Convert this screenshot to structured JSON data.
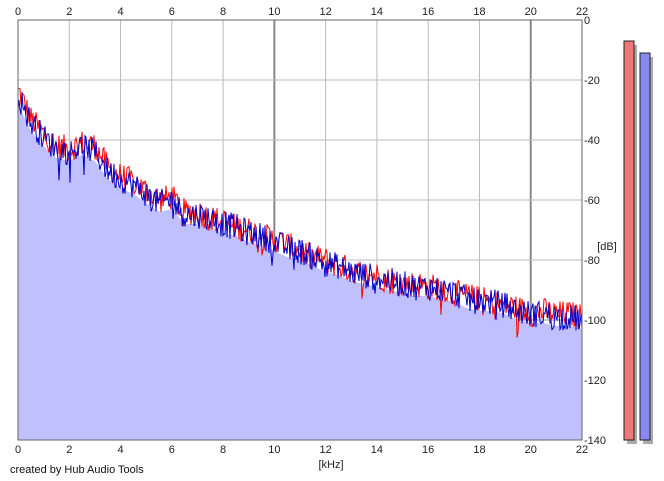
{
  "footer": {
    "credit": "created by Hub Audio Tools"
  },
  "chart_data": {
    "type": "line",
    "xlabel": "[kHz]",
    "ylabel": "[dB]",
    "xlim": [
      0,
      22
    ],
    "ylim": [
      -140,
      0
    ],
    "x_ticks": [
      0,
      2,
      4,
      6,
      8,
      10,
      12,
      14,
      16,
      18,
      20,
      22
    ],
    "y_ticks": [
      0,
      -20,
      -40,
      -60,
      -80,
      -100,
      -120,
      -140
    ],
    "grid": true,
    "series": [
      {
        "color": "#ff0000",
        "x": [
          0.05,
          0.5,
          1,
          1.5,
          2,
          2.5,
          3,
          3.5,
          4,
          4.5,
          5,
          5.5,
          6,
          6.5,
          7,
          7.5,
          8,
          8.5,
          9,
          9.5,
          10,
          10.5,
          11,
          11.5,
          12,
          12.5,
          13,
          13.5,
          14,
          14.5,
          15,
          15.5,
          16,
          16.5,
          17,
          17.5,
          18,
          18.5,
          19,
          19.5,
          20,
          20.5,
          21,
          21.5,
          22
        ],
        "values": [
          -24,
          -33,
          -38,
          -42,
          -43,
          -41,
          -42,
          -49,
          -52,
          -54,
          -57,
          -60,
          -59,
          -64,
          -64,
          -66,
          -67,
          -69,
          -70,
          -72,
          -73,
          -75,
          -77,
          -79,
          -80,
          -82,
          -83,
          -85,
          -85,
          -87,
          -88,
          -88,
          -89,
          -89,
          -91,
          -92,
          -93,
          -94,
          -95,
          -96,
          -98,
          -97,
          -98,
          -98,
          -99
        ]
      },
      {
        "color": "#0000cc",
        "x": [
          0.05,
          0.5,
          1,
          1.5,
          2,
          2.5,
          3,
          3.5,
          4,
          4.5,
          5,
          5.5,
          6,
          6.5,
          7,
          7.5,
          8,
          8.5,
          9,
          9.5,
          10,
          10.5,
          11,
          11.5,
          12,
          12.5,
          13,
          13.5,
          14,
          14.5,
          15,
          15.5,
          16,
          16.5,
          17,
          17.5,
          18,
          18.5,
          19,
          19.5,
          20,
          20.5,
          21,
          21.5,
          22
        ],
        "values": [
          -26,
          -34,
          -39,
          -43,
          -44,
          -42,
          -44,
          -50,
          -53,
          -55,
          -58,
          -61,
          -60,
          -65,
          -65,
          -66,
          -68,
          -69,
          -71,
          -72,
          -74,
          -76,
          -77,
          -79,
          -81,
          -82,
          -84,
          -85,
          -86,
          -87,
          -88,
          -89,
          -89,
          -90,
          -91,
          -93,
          -94,
          -94,
          -95,
          -97,
          -98,
          -98,
          -99,
          -99,
          -100
        ]
      }
    ],
    "level_meters": [
      {
        "color": "#ee7777",
        "value": -7
      },
      {
        "color": "#8888ee",
        "value": -11
      }
    ]
  }
}
